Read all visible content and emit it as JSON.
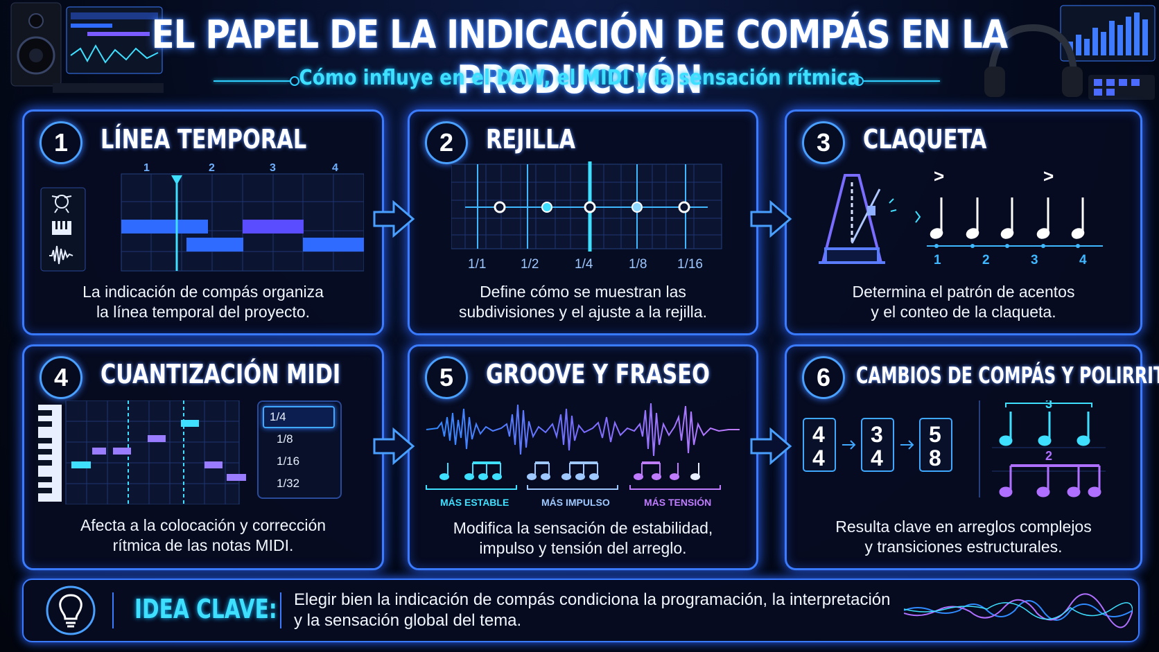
{
  "header": {
    "title": "EL PAPEL DE LA INDICACIÓN DE COMPÁS EN LA PRODUCCIÓN",
    "subtitle": "Cómo influye en el DAW, el MIDI y la sensación rítmica"
  },
  "cards": [
    {
      "number": "1",
      "title": "LÍNEA TEMPORAL",
      "description_1": "La indicación de compás organiza",
      "description_2": "la línea temporal del proyecto.",
      "bar_numbers": [
        "1",
        "2",
        "3",
        "4"
      ],
      "track_icons": [
        "drum-kit-icon",
        "piano-icon",
        "waveform-icon"
      ]
    },
    {
      "number": "2",
      "title": "REJILLA",
      "description_1": "Define cómo se muestran las",
      "description_2": "subdivisiones y el ajuste a la rejilla.",
      "grid_labels": [
        "1/1",
        "1/2",
        "1/4",
        "1/8",
        "1/16"
      ]
    },
    {
      "number": "3",
      "title": "CLAQUETA",
      "description_1": "Determina el patrón de acentos",
      "description_2": "y el conteo de la claqueta.",
      "beat_labels": [
        "1",
        "2",
        "3",
        "4"
      ],
      "accent_symbol": ">"
    },
    {
      "number": "4",
      "title": "CUANTIZACIÓN MIDI",
      "description_1": "Afecta a la colocación y corrección",
      "description_2": "rítmica de las notas MIDI.",
      "quantize_options": [
        "1/4",
        "1/8",
        "1/16",
        "1/32"
      ],
      "selected_option": "1/4"
    },
    {
      "number": "5",
      "title": "GROOVE Y FRASEO",
      "description_1": "Modifica la sensación de estabilidad,",
      "description_2": "impulso y tensión del arreglo.",
      "groove_labels": [
        "MÁS ESTABLE",
        "MÁS IMPULSO",
        "MÁS TENSIÓN"
      ]
    },
    {
      "number": "6",
      "title": "CAMBIOS DE COMPÁS Y POLIRRITMIA",
      "description_1": "Resulta clave en arreglos complejos",
      "description_2": "y transiciones estructurales.",
      "meters": [
        {
          "top": "4",
          "bottom": "4"
        },
        {
          "top": "3",
          "bottom": "4"
        },
        {
          "top": "5",
          "bottom": "8"
        }
      ],
      "tuplet_top": "3",
      "tuplet_bottom": "2"
    }
  ],
  "key_idea": {
    "label": "IDEA CLAVE:",
    "text_1": "Elegir bien la indicación de compás condiciona la programación, la interpretación",
    "text_2": "y la sensación global del tema.",
    "icon": "lightbulb-icon"
  },
  "colors": {
    "accent_blue": "#3a7bff",
    "accent_cyan": "#3fe0ff",
    "accent_purple": "#b070ff",
    "background": "#030714"
  }
}
